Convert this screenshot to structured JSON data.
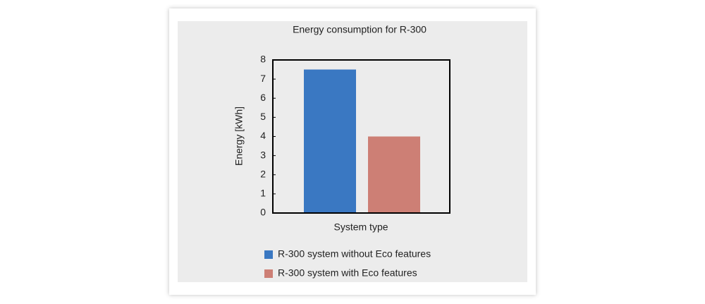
{
  "chart_data": {
    "type": "bar",
    "title": "Energy consumption for R-300",
    "xlabel": "System type",
    "ylabel": "Energy [kWh]",
    "categories": [
      null
    ],
    "series": [
      {
        "name": "R-300 system without Eco features",
        "color": "#3a78c2",
        "values": [
          7.5
        ]
      },
      {
        "name": "R-300 system with Eco features",
        "color": "#cd7f75",
        "values": [
          4
        ]
      }
    ],
    "ylim": [
      0,
      8
    ],
    "yticks": [
      0,
      1,
      2,
      3,
      4,
      5,
      6,
      7,
      8
    ],
    "grid": false,
    "legend": "bottom"
  }
}
